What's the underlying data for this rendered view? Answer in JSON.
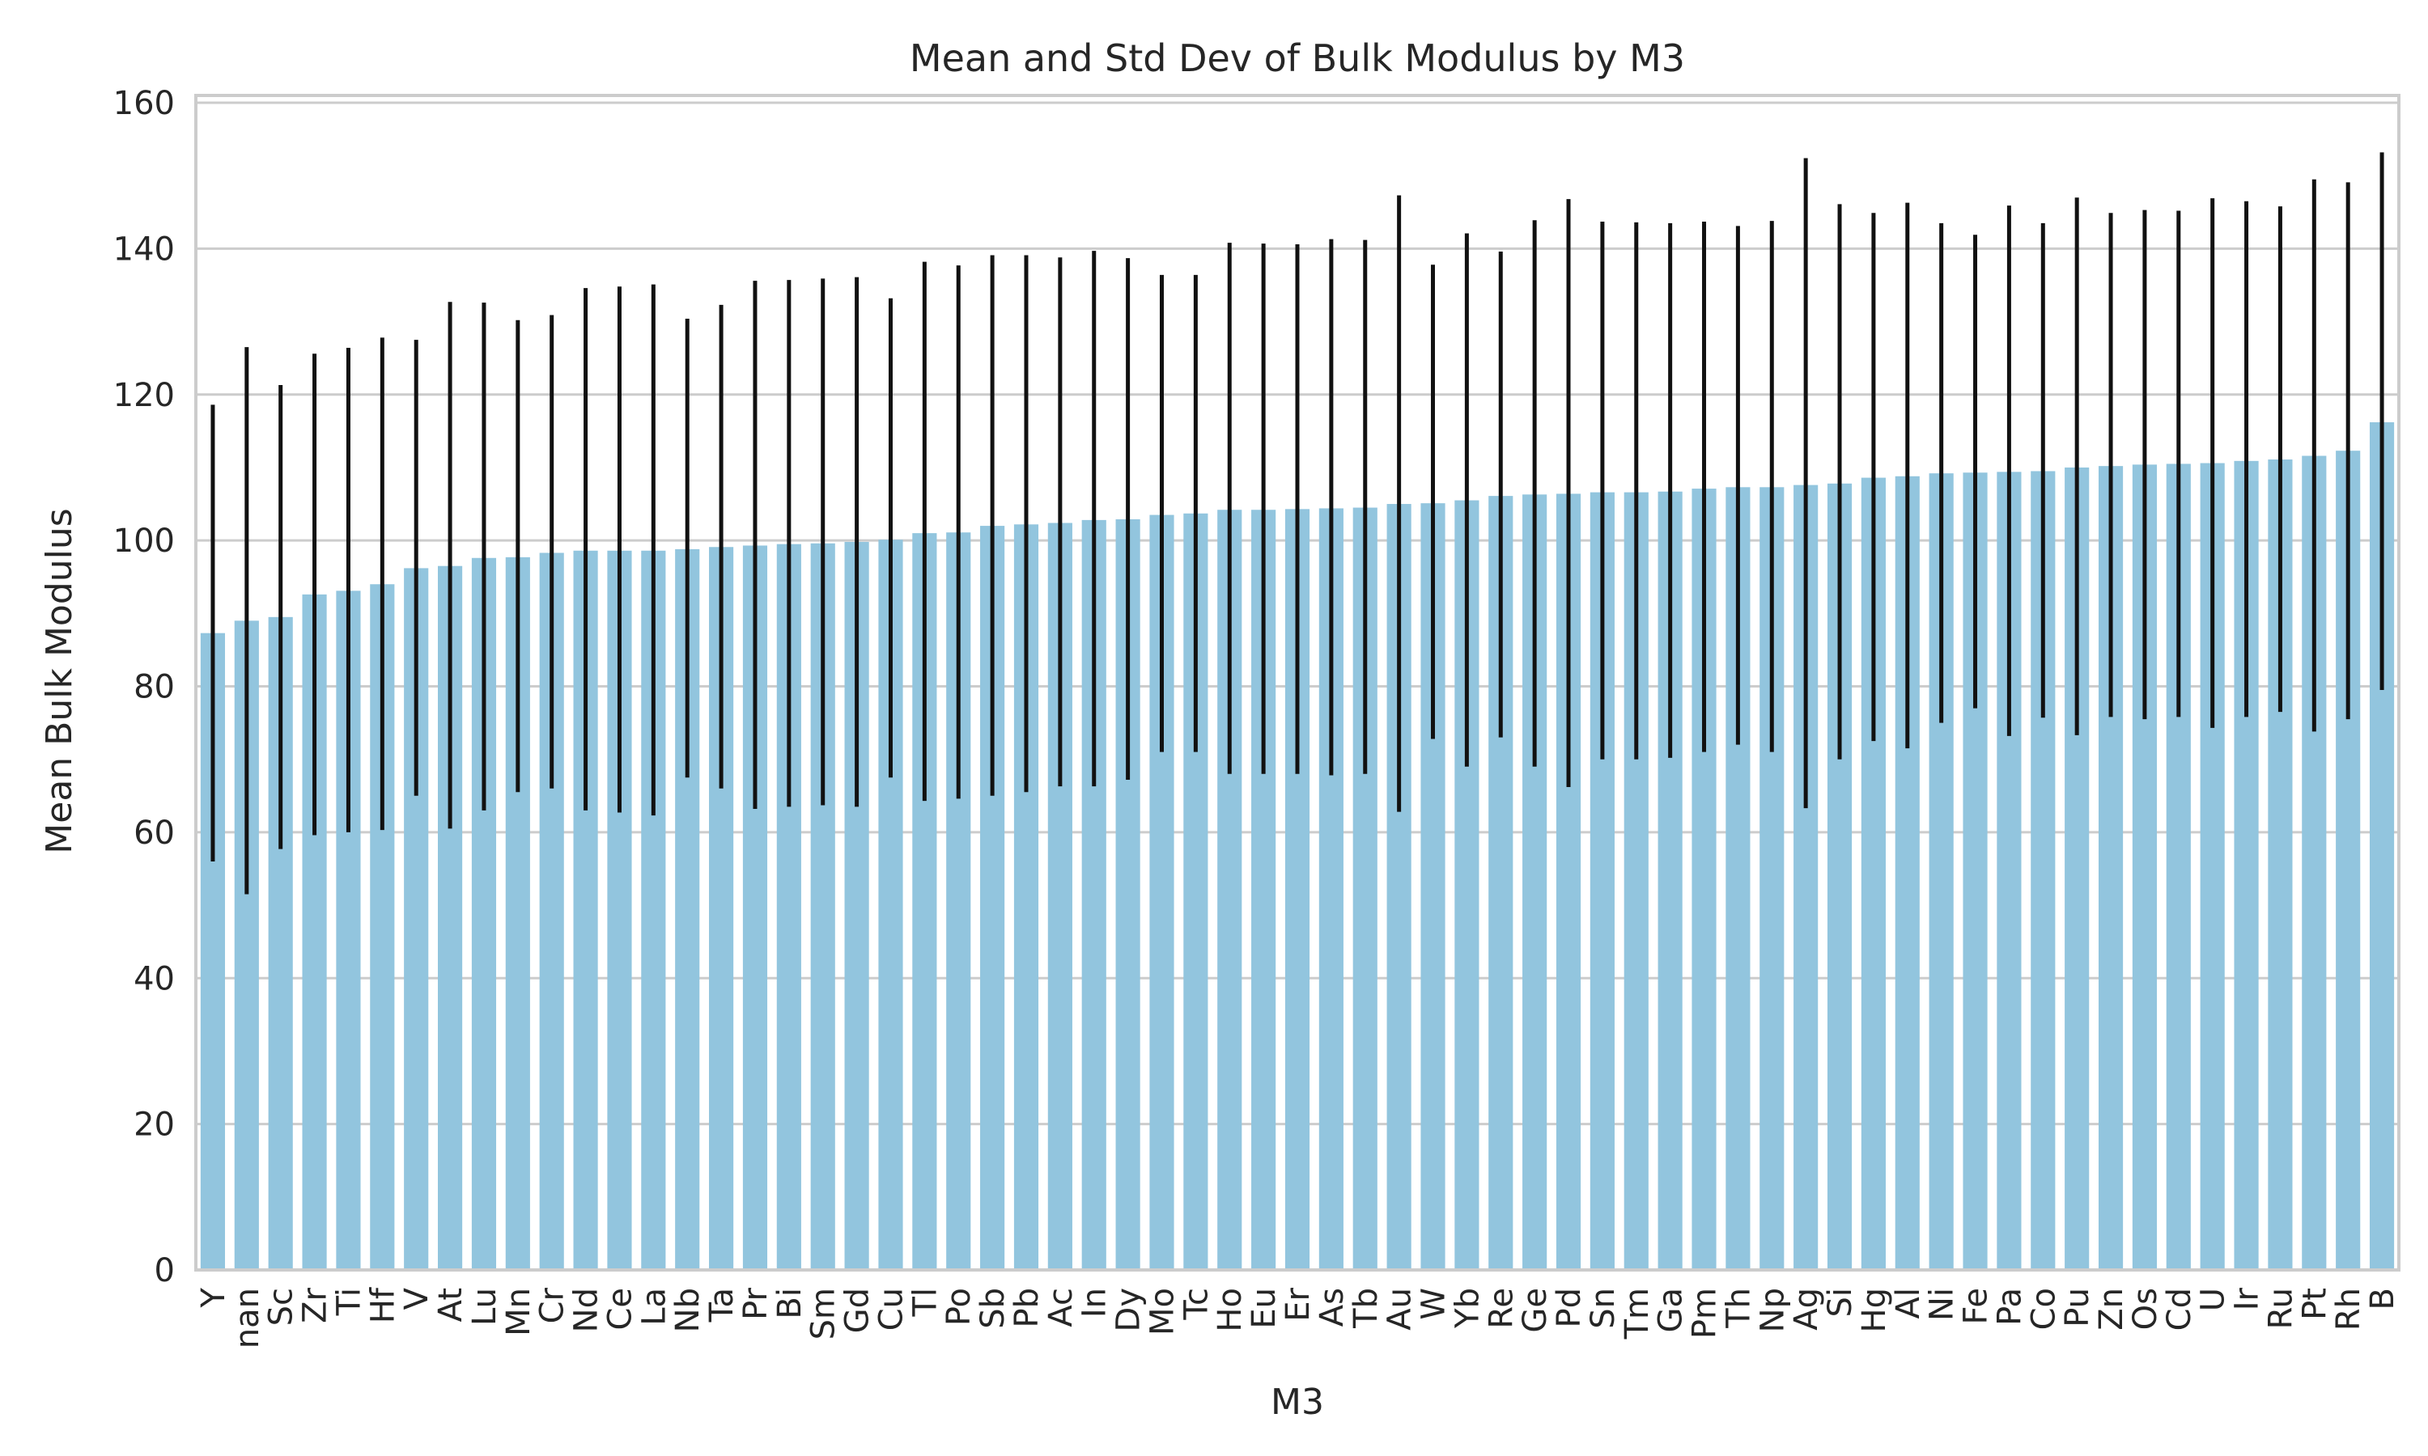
{
  "chart_data": {
    "type": "bar",
    "title": "Mean and Std Dev of Bulk Modulus by M3",
    "xlabel": "M3",
    "ylabel": "Mean Bulk Modulus",
    "ylim": [
      0,
      161
    ],
    "yticks": [
      0,
      20,
      40,
      60,
      80,
      100,
      120,
      140,
      160
    ],
    "grid": "y",
    "legend": "none",
    "colors": {
      "bar": "#92c5de",
      "error": "#111111",
      "grid": "#cccccc",
      "spine": "#cccccc"
    },
    "categories": [
      "Y",
      "nan",
      "Sc",
      "Zr",
      "Ti",
      "Hf",
      "V",
      "At",
      "Lu",
      "Mn",
      "Cr",
      "Nd",
      "Ce",
      "La",
      "Nb",
      "Ta",
      "Pr",
      "Bi",
      "Sm",
      "Gd",
      "Cu",
      "Tl",
      "Po",
      "Sb",
      "Pb",
      "Ac",
      "In",
      "Dy",
      "Mo",
      "Tc",
      "Ho",
      "Eu",
      "Er",
      "As",
      "Tb",
      "Au",
      "W",
      "Yb",
      "Re",
      "Ge",
      "Pd",
      "Sn",
      "Tm",
      "Ga",
      "Pm",
      "Th",
      "Np",
      "Ag",
      "Si",
      "Hg",
      "Al",
      "Ni",
      "Fe",
      "Pa",
      "Co",
      "Pu",
      "Zn",
      "Os",
      "Cd",
      "U",
      "Ir",
      "Ru",
      "Pt",
      "Rh",
      "B"
    ],
    "series": [
      {
        "values": [
          87.3,
          89.0,
          89.5,
          92.6,
          93.1,
          94.0,
          96.2,
          96.5,
          97.6,
          97.7,
          98.3,
          98.6,
          98.6,
          98.6,
          98.8,
          99.1,
          99.3,
          99.5,
          99.6,
          99.8,
          100.1,
          101.0,
          101.1,
          102.0,
          102.2,
          102.4,
          102.8,
          102.9,
          103.5,
          103.7,
          104.2,
          104.2,
          104.3,
          104.4,
          104.5,
          105.0,
          105.1,
          105.5,
          106.1,
          106.3,
          106.4,
          106.6,
          106.6,
          106.7,
          107.1,
          107.3,
          107.3,
          107.6,
          107.8,
          108.6,
          108.8,
          109.2,
          109.3,
          109.4,
          109.5,
          110.0,
          110.2,
          110.4,
          110.5,
          110.6,
          110.9,
          111.1,
          111.6,
          112.3,
          116.2
        ],
        "error_low": [
          56,
          51.5,
          57.7,
          59.6,
          60,
          60.3,
          65,
          60.5,
          63,
          65.5,
          66,
          63,
          62.7,
          62.3,
          67.5,
          66,
          63.2,
          63.5,
          63.7,
          63.5,
          67.5,
          64.3,
          64.6,
          65,
          65.5,
          66.3,
          66.3,
          67.2,
          71,
          71,
          68,
          68,
          68,
          67.8,
          68,
          62.8,
          72.8,
          69,
          73,
          69,
          66.2,
          70,
          70,
          70.2,
          71,
          72,
          71,
          63.3,
          70,
          72.5,
          71.5,
          75,
          77,
          73.2,
          75.7,
          73.3,
          75.8,
          75.5,
          75.8,
          74.3,
          75.8,
          76.5,
          73.8,
          75.5,
          79.5
        ],
        "error_high": [
          118.6,
          126.5,
          121.3,
          125.6,
          126.4,
          127.8,
          127.5,
          132.7,
          132.6,
          130.2,
          130.9,
          134.6,
          134.8,
          135.1,
          130.4,
          132.3,
          135.6,
          135.7,
          135.9,
          136.1,
          133.2,
          138.2,
          137.7,
          139.1,
          139.1,
          138.8,
          139.7,
          138.7,
          136.4,
          136.4,
          140.8,
          140.7,
          140.6,
          141.3,
          141.2,
          147.3,
          137.8,
          142.1,
          139.6,
          143.9,
          146.8,
          143.7,
          143.6,
          143.5,
          143.7,
          143.1,
          143.8,
          152.4,
          146.1,
          144.9,
          146.3,
          143.5,
          141.9,
          145.9,
          143.5,
          147.0,
          144.9,
          145.3,
          145.2,
          146.9,
          146.5,
          145.8,
          149.5,
          149.1,
          153.2
        ]
      }
    ]
  }
}
